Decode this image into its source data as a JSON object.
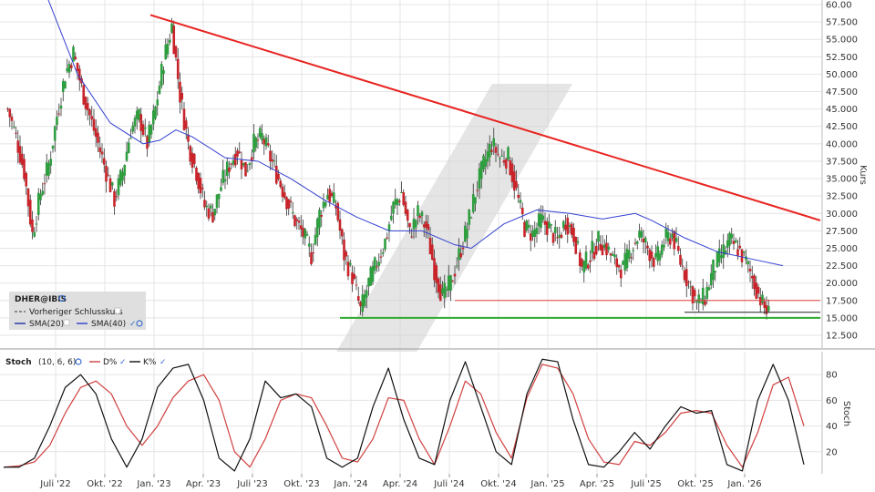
{
  "chart_data": [
    {
      "type": "candlestick",
      "instrument_label": "DHER@IBIS",
      "yaxis_label": "Kurs",
      "ylim": [
        11.0,
        60.5
      ],
      "y_ticks": [
        "12.500",
        "15.000",
        "17.500",
        "20.000",
        "22.500",
        "25.000",
        "27.500",
        "30.000",
        "32.500",
        "35.000",
        "37.500",
        "40.000",
        "42.500",
        "45.000",
        "47.500",
        "50.000",
        "52.500",
        "55.000",
        "57.500",
        "60.00"
      ],
      "x_ticks": [
        "Juli '22",
        "Okt. '22",
        "Jan. '23",
        "Apr. '23",
        "Juli '23",
        "Okt. '23",
        "Jan. '24",
        "Apr. '24",
        "Juli '24",
        "Okt. '24",
        "Jan. '25",
        "Apr. '25",
        "Juli '25",
        "Okt. '25",
        "Jan. '26"
      ],
      "date_range": [
        "2022-04",
        "2026-04"
      ],
      "close_series": [
        {
          "t": "2022-04",
          "v": 45
        },
        {
          "t": "2022-04",
          "v": 41
        },
        {
          "t": "2022-05",
          "v": 36
        },
        {
          "t": "2022-05",
          "v": 27
        },
        {
          "t": "2022-06",
          "v": 33
        },
        {
          "t": "2022-06",
          "v": 37
        },
        {
          "t": "2022-07",
          "v": 44
        },
        {
          "t": "2022-07",
          "v": 50
        },
        {
          "t": "2022-08",
          "v": 53
        },
        {
          "t": "2022-08",
          "v": 48
        },
        {
          "t": "2022-09",
          "v": 44
        },
        {
          "t": "2022-09",
          "v": 40
        },
        {
          "t": "2022-10",
          "v": 36
        },
        {
          "t": "2022-10",
          "v": 32
        },
        {
          "t": "2022-11",
          "v": 36
        },
        {
          "t": "2022-11",
          "v": 42
        },
        {
          "t": "2022-12",
          "v": 44
        },
        {
          "t": "2022-12",
          "v": 40
        },
        {
          "t": "2023-01",
          "v": 45
        },
        {
          "t": "2023-01",
          "v": 52
        },
        {
          "t": "2023-02",
          "v": 57
        },
        {
          "t": "2023-02",
          "v": 47
        },
        {
          "t": "2023-03",
          "v": 40
        },
        {
          "t": "2023-03",
          "v": 36
        },
        {
          "t": "2023-04",
          "v": 31
        },
        {
          "t": "2023-04",
          "v": 30
        },
        {
          "t": "2023-05",
          "v": 34
        },
        {
          "t": "2023-05",
          "v": 37
        },
        {
          "t": "2023-06",
          "v": 39
        },
        {
          "t": "2023-06",
          "v": 36
        },
        {
          "t": "2023-07",
          "v": 40
        },
        {
          "t": "2023-07",
          "v": 41
        },
        {
          "t": "2023-08",
          "v": 38
        },
        {
          "t": "2023-08",
          "v": 35
        },
        {
          "t": "2023-09",
          "v": 32
        },
        {
          "t": "2023-09",
          "v": 29
        },
        {
          "t": "2023-10",
          "v": 27
        },
        {
          "t": "2023-10",
          "v": 24
        },
        {
          "t": "2023-11",
          "v": 30
        },
        {
          "t": "2023-11",
          "v": 33
        },
        {
          "t": "2023-12",
          "v": 31
        },
        {
          "t": "2023-12",
          "v": 24
        },
        {
          "t": "2024-01",
          "v": 21
        },
        {
          "t": "2024-01",
          "v": 16
        },
        {
          "t": "2024-02",
          "v": 20
        },
        {
          "t": "2024-02",
          "v": 23
        },
        {
          "t": "2024-03",
          "v": 26
        },
        {
          "t": "2024-03",
          "v": 31
        },
        {
          "t": "2024-04",
          "v": 33
        },
        {
          "t": "2024-04",
          "v": 27
        },
        {
          "t": "2024-05",
          "v": 30
        },
        {
          "t": "2024-05",
          "v": 28
        },
        {
          "t": "2024-06",
          "v": 22
        },
        {
          "t": "2024-06",
          "v": 18
        },
        {
          "t": "2024-07",
          "v": 20
        },
        {
          "t": "2024-07",
          "v": 24
        },
        {
          "t": "2024-08",
          "v": 28
        },
        {
          "t": "2024-08",
          "v": 33
        },
        {
          "t": "2024-09",
          "v": 37
        },
        {
          "t": "2024-09",
          "v": 40
        },
        {
          "t": "2024-10",
          "v": 38
        },
        {
          "t": "2024-10",
          "v": 38
        },
        {
          "t": "2024-11",
          "v": 33
        },
        {
          "t": "2024-11",
          "v": 28
        },
        {
          "t": "2024-12",
          "v": 27
        },
        {
          "t": "2024-12",
          "v": 29
        },
        {
          "t": "2025-01",
          "v": 28
        },
        {
          "t": "2025-01",
          "v": 26
        },
        {
          "t": "2025-02",
          "v": 29
        },
        {
          "t": "2025-02",
          "v": 27
        },
        {
          "t": "2025-03",
          "v": 22
        },
        {
          "t": "2025-03",
          "v": 24
        },
        {
          "t": "2025-04",
          "v": 26
        },
        {
          "t": "2025-04",
          "v": 25
        },
        {
          "t": "2025-05",
          "v": 23
        },
        {
          "t": "2025-05",
          "v": 22
        },
        {
          "t": "2025-06",
          "v": 25
        },
        {
          "t": "2025-06",
          "v": 27
        },
        {
          "t": "2025-07",
          "v": 25
        },
        {
          "t": "2025-07",
          "v": 23
        },
        {
          "t": "2025-08",
          "v": 26
        },
        {
          "t": "2025-08",
          "v": 27
        },
        {
          "t": "2025-09",
          "v": 23
        },
        {
          "t": "2025-09",
          "v": 20
        },
        {
          "t": "2025-10",
          "v": 17
        },
        {
          "t": "2025-10",
          "v": 18
        },
        {
          "t": "2025-11",
          "v": 22
        },
        {
          "t": "2025-11",
          "v": 24
        },
        {
          "t": "2025-12",
          "v": 26
        },
        {
          "t": "2025-12",
          "v": 25
        },
        {
          "t": "2026-01",
          "v": 23
        },
        {
          "t": "2026-01",
          "v": 20
        },
        {
          "t": "2026-02",
          "v": 17
        },
        {
          "t": "2026-02",
          "v": 15
        }
      ],
      "sma40_series": [
        {
          "t": "2022-04",
          "v": 80
        },
        {
          "t": "2022-06",
          "v": 62
        },
        {
          "t": "2022-08",
          "v": 50
        },
        {
          "t": "2022-10",
          "v": 43
        },
        {
          "t": "2022-12",
          "v": 40
        },
        {
          "t": "2023-01",
          "v": 40.5
        },
        {
          "t": "2023-02",
          "v": 42
        },
        {
          "t": "2023-03",
          "v": 41
        },
        {
          "t": "2023-05",
          "v": 38
        },
        {
          "t": "2023-07",
          "v": 37.5
        },
        {
          "t": "2023-09",
          "v": 35
        },
        {
          "t": "2023-11",
          "v": 32
        },
        {
          "t": "2024-01",
          "v": 29.5
        },
        {
          "t": "2024-03",
          "v": 27.5
        },
        {
          "t": "2024-05",
          "v": 27.5
        },
        {
          "t": "2024-07",
          "v": 25.5
        },
        {
          "t": "2024-08",
          "v": 25
        },
        {
          "t": "2024-10",
          "v": 28.5
        },
        {
          "t": "2024-12",
          "v": 30.5
        },
        {
          "t": "2025-02",
          "v": 30
        },
        {
          "t": "2025-04",
          "v": 29.2
        },
        {
          "t": "2025-06",
          "v": 30
        },
        {
          "t": "2025-07",
          "v": 29
        },
        {
          "t": "2025-09",
          "v": 26.5
        },
        {
          "t": "2025-11",
          "v": 24.5
        },
        {
          "t": "2026-01",
          "v": 23.5
        },
        {
          "t": "2026-03",
          "v": 22.5
        }
      ],
      "trendline": {
        "start": {
          "t": "2023-01",
          "v": 58.5
        },
        "end": {
          "t": "2026-04",
          "v": 29
        },
        "color": "#e8231f"
      },
      "support_line": {
        "value": 15.0,
        "start_t": "2023-12",
        "end_t": "2026-04",
        "color": "#2eaa2e"
      },
      "resistance_line": {
        "value": 17.5,
        "start_t": "2024-07",
        "end_t": "2026-04",
        "color": "#e84040"
      },
      "prev_close_line": {
        "value": 15.8,
        "start_t": "2025-09",
        "end_t": "2026-04",
        "color": "#222222"
      },
      "legend": {
        "title": "DHER@IBIS",
        "items": [
          {
            "label": "Vorheriger Schlusskurs",
            "style": "dashed",
            "color": "#555555"
          },
          {
            "label": "SMA(20)",
            "style": "solid",
            "color": "#1f2fa6"
          },
          {
            "label": "SMA(40)",
            "style": "solid",
            "color": "#2b3fcf"
          }
        ]
      },
      "colors": {
        "up": "#2e9e3f",
        "down": "#c8242a",
        "sma": "#3240d0",
        "grid": "#e4e4e4"
      }
    },
    {
      "type": "line",
      "indicator_label": "Stoch",
      "params": "(10, 6, 6)",
      "yaxis_label": "Stoch",
      "ylim": [
        0,
        95
      ],
      "y_ticks": [
        "20",
        "40",
        "60",
        "80"
      ],
      "series": [
        {
          "name": "D%",
          "color": "#d04040",
          "values": [
            8,
            9,
            12,
            25,
            50,
            70,
            75,
            65,
            40,
            25,
            40,
            62,
            75,
            80,
            60,
            20,
            8,
            30,
            60,
            65,
            62,
            40,
            15,
            12,
            30,
            62,
            60,
            30,
            10,
            40,
            75,
            65,
            35,
            15,
            62,
            88,
            85,
            65,
            30,
            12,
            10,
            28,
            25,
            35,
            50,
            52,
            50,
            25,
            8,
            35,
            72,
            78,
            40
          ]
        },
        {
          "name": "K%",
          "color": "#111111",
          "values": [
            8,
            8,
            15,
            40,
            70,
            80,
            65,
            30,
            8,
            30,
            70,
            85,
            88,
            60,
            15,
            5,
            30,
            75,
            62,
            65,
            55,
            15,
            8,
            15,
            55,
            85,
            45,
            15,
            10,
            60,
            90,
            55,
            20,
            10,
            65,
            92,
            90,
            45,
            10,
            8,
            20,
            35,
            22,
            40,
            55,
            50,
            52,
            10,
            5,
            60,
            88,
            60,
            10
          ]
        }
      ],
      "colors": {
        "grid": "#e4e4e4"
      }
    }
  ]
}
